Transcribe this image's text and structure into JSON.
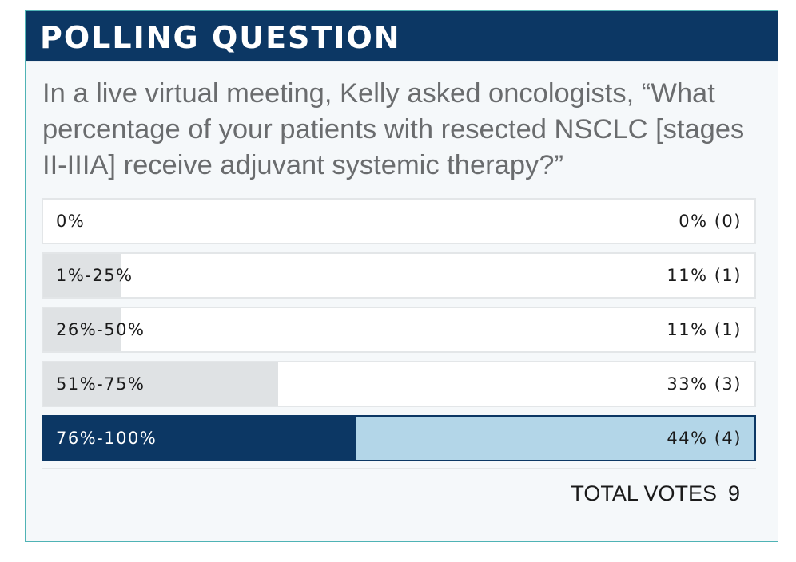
{
  "header": {
    "title": "POLLING QUESTION"
  },
  "question": "In a live virtual meeting, Kelly asked oncologists, “What percentage of your patients with resected NSCLC [stages II-IIIA] receive adjuvant systemic therapy?”",
  "colors": {
    "header_bg": "#0c3764",
    "card_border": "#4fb3b5",
    "card_bg": "#f5f8fa",
    "bar_fill": "#dfe2e4",
    "selected_fill": "#0c3764",
    "selected_bg": "#b3d6e8"
  },
  "chart_data": {
    "type": "bar",
    "orientation": "horizontal",
    "categories": [
      "0%",
      "1%-25%",
      "26%-50%",
      "51%-75%",
      "76%-100%"
    ],
    "values": [
      0,
      11,
      11,
      33,
      44
    ],
    "counts": [
      0,
      1,
      1,
      3,
      4
    ],
    "value_labels": [
      "0% (0)",
      "11% (1)",
      "11% (1)",
      "33% (3)",
      "44% (4)"
    ],
    "selected_index": 4,
    "xlim": [
      0,
      100
    ]
  },
  "footer": {
    "total_label": "TOTAL VOTES",
    "total_count": "9"
  }
}
